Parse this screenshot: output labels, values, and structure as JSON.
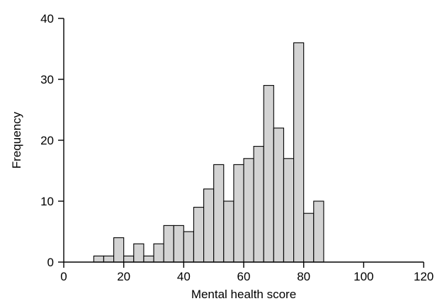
{
  "chart_data": {
    "type": "bar",
    "variant": "histogram",
    "title": "",
    "xlabel": "Mental health score",
    "ylabel": "Frequency",
    "xlim": [
      0,
      120
    ],
    "ylim": [
      0,
      40
    ],
    "xticks": [
      0,
      20,
      40,
      60,
      80,
      100,
      120
    ],
    "yticks": [
      0,
      10,
      20,
      30,
      40
    ],
    "grid": false,
    "bar_color": "#d3d3d3",
    "edge_color": "#000000",
    "bins": [
      {
        "start": 10,
        "end": 13.33,
        "count": 1
      },
      {
        "start": 13.33,
        "end": 16.67,
        "count": 1
      },
      {
        "start": 16.67,
        "end": 20,
        "count": 4
      },
      {
        "start": 20,
        "end": 23.33,
        "count": 1
      },
      {
        "start": 23.33,
        "end": 26.67,
        "count": 3
      },
      {
        "start": 26.67,
        "end": 30,
        "count": 1
      },
      {
        "start": 30,
        "end": 33.33,
        "count": 3
      },
      {
        "start": 33.33,
        "end": 36.67,
        "count": 6
      },
      {
        "start": 36.67,
        "end": 40,
        "count": 6
      },
      {
        "start": 40,
        "end": 43.33,
        "count": 5
      },
      {
        "start": 43.33,
        "end": 46.67,
        "count": 9
      },
      {
        "start": 46.67,
        "end": 50,
        "count": 12
      },
      {
        "start": 50,
        "end": 53.33,
        "count": 16
      },
      {
        "start": 53.33,
        "end": 56.67,
        "count": 10
      },
      {
        "start": 56.67,
        "end": 60,
        "count": 16
      },
      {
        "start": 60,
        "end": 63.33,
        "count": 17
      },
      {
        "start": 63.33,
        "end": 66.67,
        "count": 19
      },
      {
        "start": 66.67,
        "end": 70,
        "count": 29
      },
      {
        "start": 70,
        "end": 73.33,
        "count": 22
      },
      {
        "start": 73.33,
        "end": 76.67,
        "count": 17
      },
      {
        "start": 76.67,
        "end": 80,
        "count": 36
      },
      {
        "start": 80,
        "end": 83.33,
        "count": 8
      },
      {
        "start": 83.33,
        "end": 86.67,
        "count": 10
      }
    ]
  }
}
